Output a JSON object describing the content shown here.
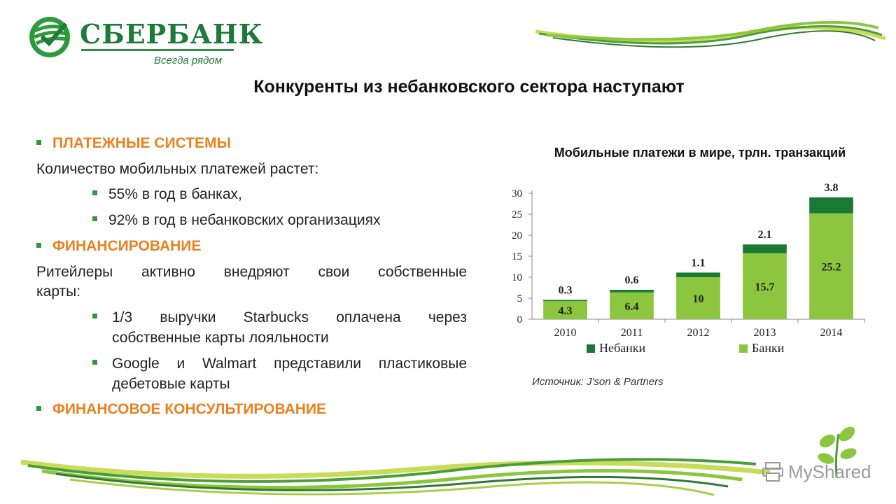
{
  "brand": {
    "name": "СБЕРБАНК",
    "tagline": "Всегда рядом",
    "colors": {
      "primary": "#1f7a3a",
      "accent": "#e8811f",
      "bank_green": "#8cc63f",
      "nonbank_green": "#1a7a33"
    }
  },
  "slide": {
    "title": "Конкуренты из небанковского сектора наступают"
  },
  "content": {
    "section1": "ПЛАТЕЖНЫЕ СИСТЕМЫ",
    "p1": "Количество мобильных платежей растет:",
    "p1_items": [
      "55% в год в банках,",
      "92% в год  в небанковских организациях"
    ],
    "section2": "ФИНАНСИРОВАНИЕ",
    "p2_line1": "Ритейлеры активно внедряют свои собственные",
    "p2_line2": "карты:",
    "p2_item1_line1": " 1/3 выручки Starbucks оплачена через",
    "p2_item1_line2": "собственные карты лояльности",
    "p2_item2_line1": "Google и Walmart представили пластиковые",
    "p2_item2_line2": "дебетовые карты",
    "section3": "ФИНАНСОВОЕ КОНСУЛЬТИРОВАНИЕ"
  },
  "chart_data": {
    "type": "bar",
    "stacked": true,
    "title": "Мобильные платежи в мире, трлн. транзакций",
    "categories": [
      "2010",
      "2011",
      "2012",
      "2013",
      "2014"
    ],
    "series": [
      {
        "name": "Банки",
        "values": [
          4.3,
          6.4,
          10,
          15.7,
          25.2
        ],
        "color": "#8cc63f"
      },
      {
        "name": "Небанки",
        "values": [
          0.3,
          0.6,
          1.1,
          2.1,
          3.8
        ],
        "color": "#1a7a33"
      }
    ],
    "data_labels": {
      "Банки": [
        "4.3",
        "6.4",
        "10",
        "15.7",
        "25.2"
      ],
      "Небанки": [
        "0.3",
        "0.6",
        "1.1",
        "2.1",
        "3.8"
      ]
    },
    "y_ticks": [
      "0",
      "5",
      "10",
      "15",
      "20",
      "25",
      "30"
    ],
    "ylim": [
      0,
      30
    ],
    "legend": {
      "placement": "bottom",
      "order": [
        "Небанки",
        "Банки"
      ]
    },
    "grid": false,
    "source": "Источник: J'son & Partners"
  },
  "watermark": {
    "text": "MyShared"
  }
}
